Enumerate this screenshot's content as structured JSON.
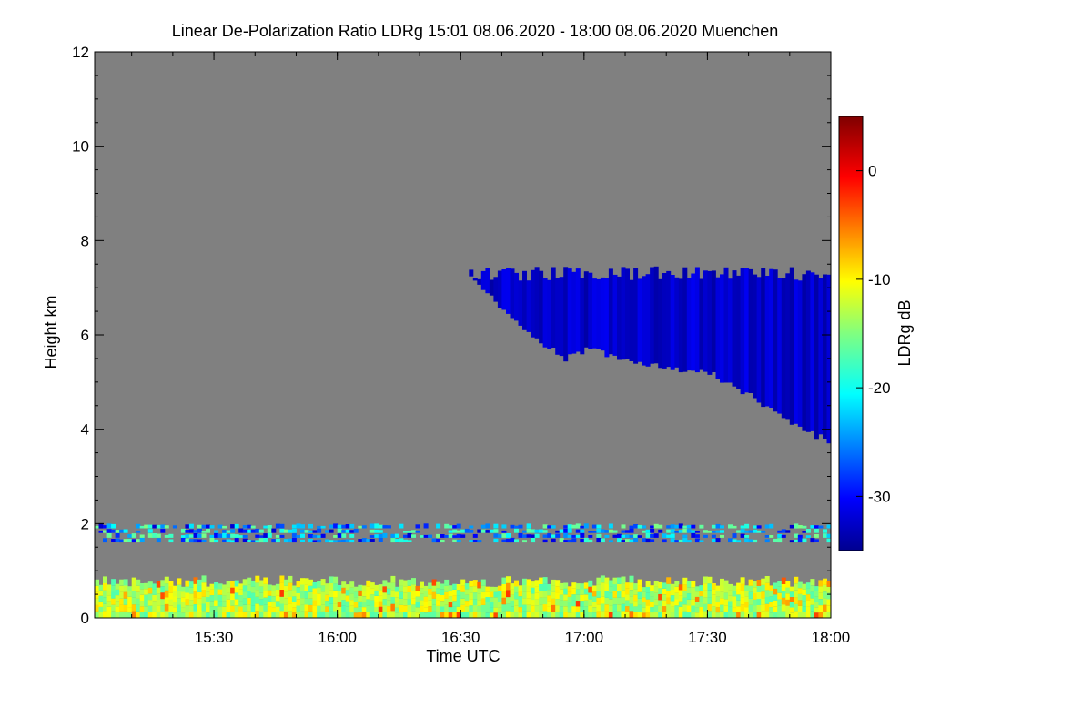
{
  "chart_data": {
    "type": "heatmap",
    "title": "Linear De-Polarization Ratio LDRg   15:01 08.06.2020 - 18:00 08.06.2020 Muenchen",
    "xlabel": "Time UTC",
    "ylabel": "Height km",
    "xlim_minutes": [
      901,
      1080
    ],
    "ylim_km": [
      0,
      12
    ],
    "x_ticks": [
      {
        "minutes": 930,
        "label": "15:30"
      },
      {
        "minutes": 960,
        "label": "16:00"
      },
      {
        "minutes": 990,
        "label": "16:30"
      },
      {
        "minutes": 1020,
        "label": "17:00"
      },
      {
        "minutes": 1050,
        "label": "17:30"
      },
      {
        "minutes": 1080,
        "label": "18:00"
      }
    ],
    "y_ticks": [
      {
        "value": 0,
        "label": "0"
      },
      {
        "value": 2,
        "label": "2"
      },
      {
        "value": 4,
        "label": "4"
      },
      {
        "value": 6,
        "label": "6"
      },
      {
        "value": 8,
        "label": "8"
      },
      {
        "value": 10,
        "label": "10"
      },
      {
        "value": 12,
        "label": "12"
      }
    ],
    "colorbar": {
      "label": "LDRg dB",
      "range_db": [
        -35,
        5
      ],
      "ticks": [
        {
          "value": 0,
          "label": "0"
        },
        {
          "value": -10,
          "label": "-10"
        },
        {
          "value": -20,
          "label": "-20"
        },
        {
          "value": -30,
          "label": "-30"
        }
      ]
    },
    "background": "#808080",
    "layers": [
      {
        "name": "ice cloud",
        "ldr_db": -32,
        "top_km": 7.3,
        "base_profile": [
          [
            990,
            7.4
          ],
          [
            1000,
            6.5
          ],
          [
            1010,
            5.8
          ],
          [
            1015,
            5.5
          ],
          [
            1020,
            5.7
          ],
          [
            1030,
            5.5
          ],
          [
            1040,
            5.3
          ],
          [
            1050,
            5.2
          ],
          [
            1060,
            4.7
          ],
          [
            1070,
            4.1
          ],
          [
            1080,
            3.7
          ]
        ]
      },
      {
        "name": "aerosol layer",
        "base_km": 1.6,
        "top_km": 2.0,
        "ldr_range_db": [
          -32,
          -15
        ]
      },
      {
        "name": "boundary layer",
        "base_km": 0.0,
        "top_km": 0.8,
        "ldr_range_db": [
          -15,
          0
        ]
      }
    ]
  }
}
